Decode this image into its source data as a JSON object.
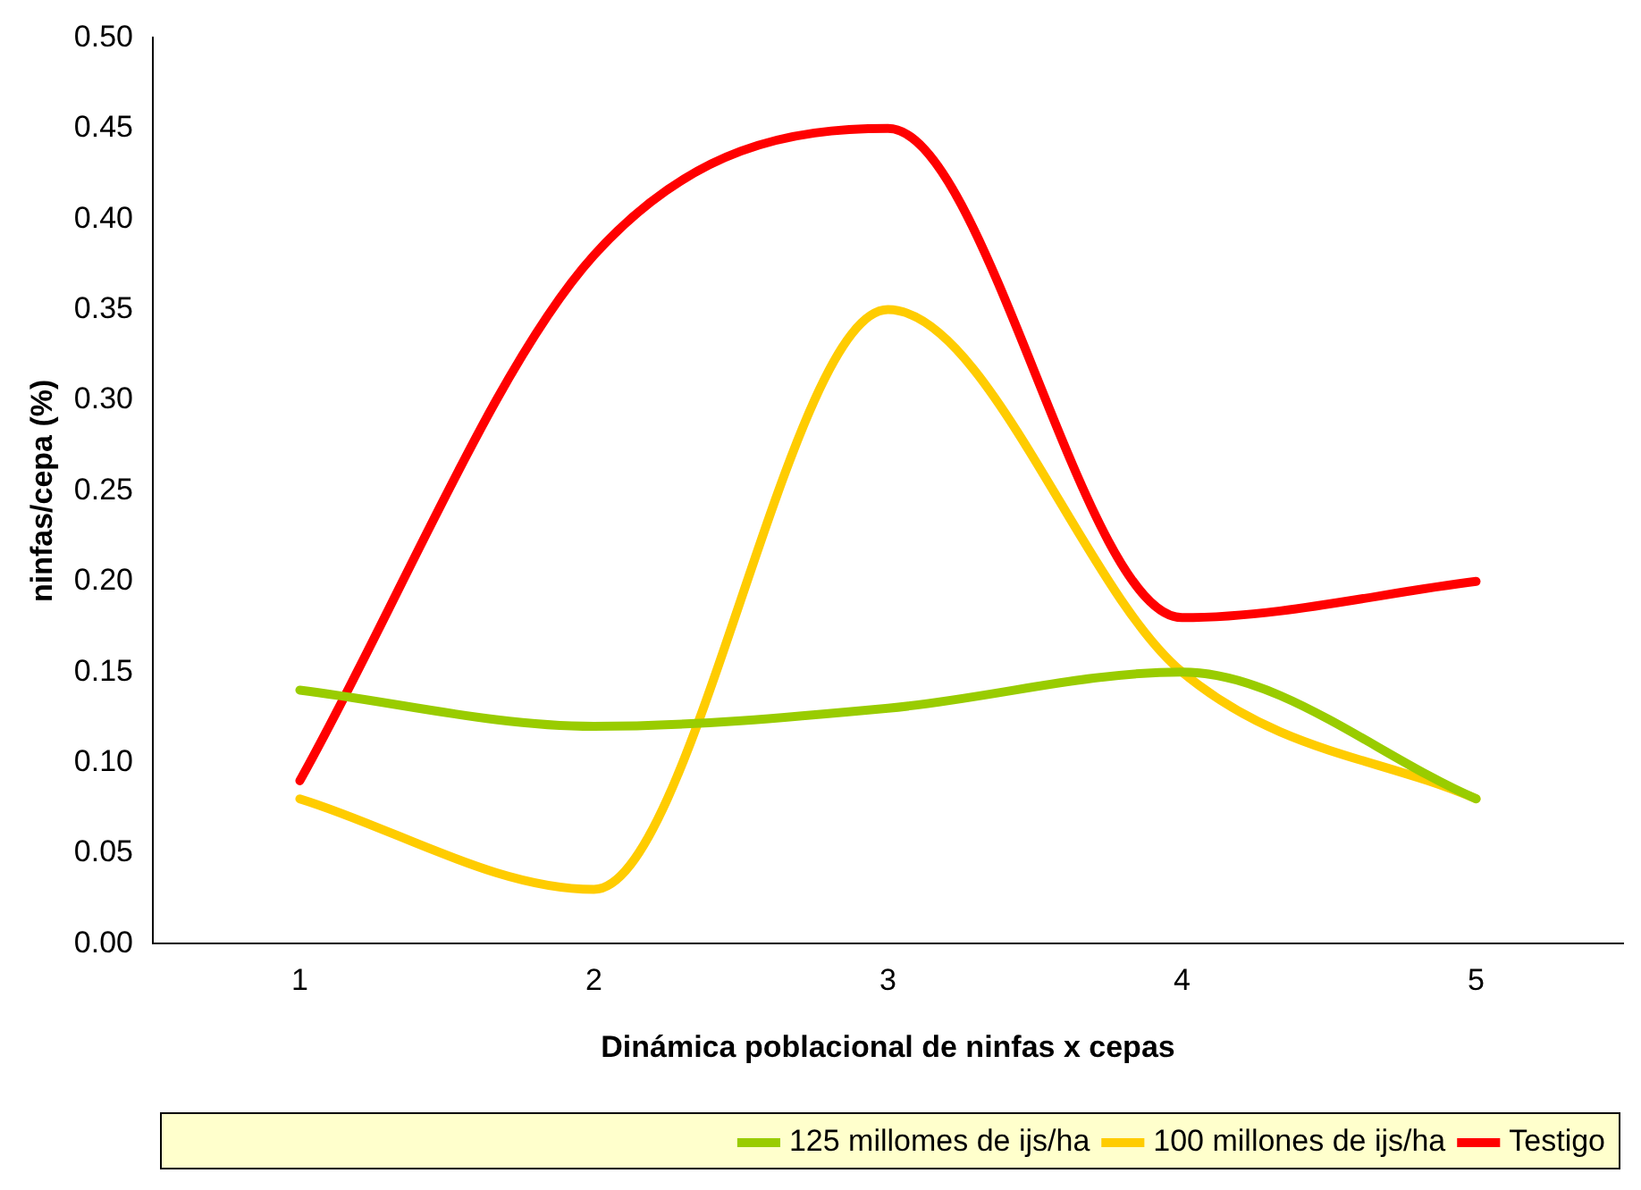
{
  "chart_data": {
    "type": "line",
    "xlabel": "Dinámica poblacional de ninfas x cepas",
    "ylabel": "ninfas/cepa (%)",
    "categories": [
      "1",
      "2",
      "3",
      "4",
      "5"
    ],
    "series": [
      {
        "name": "125 millomes de ijs/ha",
        "color": "#99cc00",
        "values": [
          0.14,
          0.12,
          0.13,
          0.15,
          0.08
        ]
      },
      {
        "name": "100 millones de ijs/ha",
        "color": "#ffcc00",
        "values": [
          0.08,
          0.03,
          0.35,
          0.15,
          0.08
        ]
      },
      {
        "name": "Testigo",
        "color": "#ff0000",
        "values": [
          0.09,
          0.38,
          0.45,
          0.18,
          0.2
        ]
      }
    ],
    "ylim": [
      0,
      0.5
    ],
    "yticks": [
      {
        "value": 0,
        "label": "0.00"
      },
      {
        "value": 0.05,
        "label": "0.05"
      },
      {
        "value": 0.1,
        "label": "0.10"
      },
      {
        "value": 0.15,
        "label": "0.15"
      },
      {
        "value": 0.2,
        "label": "0.20"
      },
      {
        "value": 0.25,
        "label": "0.25"
      },
      {
        "value": 0.3,
        "label": "0.30"
      },
      {
        "value": 0.35,
        "label": "0.35"
      },
      {
        "value": 0.4,
        "label": "0.40"
      },
      {
        "value": 0.45,
        "label": "0.45"
      },
      {
        "value": 0.5,
        "label": "0.50"
      }
    ],
    "legend": "bottom",
    "marker": "none",
    "line_style": "solid"
  }
}
